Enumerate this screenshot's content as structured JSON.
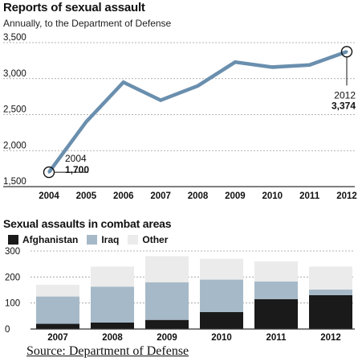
{
  "chart_data": [
    {
      "type": "line",
      "title": "Reports of sexual assault",
      "subtitle": "Annually, to the Department of Defense",
      "x": [
        "2004",
        "2005",
        "2006",
        "2007",
        "2008",
        "2009",
        "2010",
        "2011",
        "2012"
      ],
      "series": [
        {
          "values": [
            1700,
            2400,
            2950,
            2700,
            2900,
            3230,
            3160,
            3190,
            3374
          ]
        }
      ],
      "ylim": [
        1500,
        3500
      ],
      "yticks": [
        "1,500",
        "2,000",
        "2,500",
        "3,000",
        "3,500"
      ],
      "grid": true,
      "annotations": [
        {
          "year": "2004",
          "value": "1,700"
        },
        {
          "year": "2012",
          "value": "3,374"
        }
      ],
      "colors": {
        "line": "#6a8fae",
        "grid": "#9a9a9a"
      }
    },
    {
      "type": "bar",
      "stacked": true,
      "title": "Sexual assaults in combat areas",
      "categories": [
        "2007",
        "2008",
        "2009",
        "2010",
        "2011",
        "2012"
      ],
      "series": [
        {
          "name": "Afghanistan",
          "values": [
            20,
            25,
            35,
            65,
            115,
            130
          ],
          "color": "#1a1a1a"
        },
        {
          "name": "Iraq",
          "values": [
            105,
            138,
            145,
            125,
            68,
            22
          ],
          "color": "#a6b9c8"
        },
        {
          "name": "Other",
          "values": [
            45,
            77,
            100,
            80,
            77,
            88
          ],
          "color": "#ebebeb"
        }
      ],
      "ylim": [
        0,
        300
      ],
      "yticks": [
        "0",
        "100",
        "200",
        "300"
      ],
      "grid": true
    }
  ],
  "source": "Source: Department of Defense"
}
